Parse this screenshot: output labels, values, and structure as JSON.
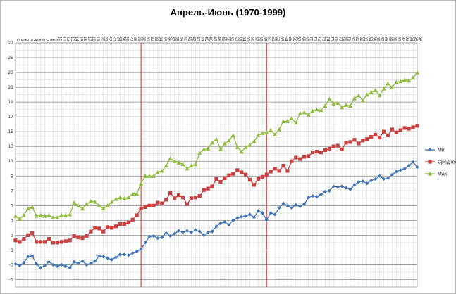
{
  "chart_data": {
    "type": "line",
    "title": "Апрель-Июнь (1970-1999)",
    "xlabel": "",
    "ylabel": "",
    "x_categories": [
      "0",
      "1",
      "2",
      "3",
      "4",
      "5",
      "6",
      "7",
      "8",
      "9",
      "10",
      "11",
      "12",
      "13",
      "14",
      "15",
      "16",
      "17",
      "18",
      "19",
      "20",
      "21",
      "22",
      "23",
      "24",
      "25",
      "26",
      "27",
      "28",
      "29",
      "30",
      "31",
      "32",
      "33",
      "34",
      "35",
      "36",
      "37",
      "38",
      "39",
      "40",
      "41",
      "42",
      "43",
      "44",
      "45",
      "46",
      "47",
      "48",
      "49",
      "50",
      "51",
      "52",
      "53",
      "54",
      "55",
      "56",
      "57",
      "58",
      "59",
      "60",
      "61",
      "62",
      "63",
      "64",
      "65",
      "66",
      "67",
      "68",
      "69",
      "70",
      "71",
      "72",
      "73",
      "74",
      "75",
      "76",
      "77",
      "78",
      "79",
      "80",
      "81",
      "82",
      "83",
      "84",
      "85",
      "86",
      "87",
      "88",
      "89",
      "90",
      "91",
      "92",
      "93",
      "94",
      "95",
      "96"
    ],
    "y_ticks": [
      -5,
      -3,
      -1,
      1,
      3,
      5,
      7,
      9,
      11,
      13,
      15,
      17,
      19,
      21,
      23,
      25,
      27
    ],
    "ylim": [
      -6,
      27
    ],
    "grid": true,
    "vertical_markers": [
      30,
      60
    ],
    "legend_position": "right",
    "series": [
      {
        "name": "Min",
        "color": "#3f73b8",
        "marker": "diamond",
        "values": [
          -2.9,
          -3.1,
          -2.7,
          -1.9,
          -1.8,
          -2.9,
          -3.4,
          -3.1,
          -2.6,
          -3.0,
          -3.2,
          -3.0,
          -3.2,
          -3.4,
          -2.6,
          -2.8,
          -2.5,
          -3.0,
          -2.8,
          -2.5,
          -1.8,
          -1.9,
          -2.1,
          -2.3,
          -2.0,
          -1.6,
          -1.6,
          -1.7,
          -1.4,
          -1.2,
          -0.9,
          0.0,
          0.8,
          0.9,
          0.6,
          0.7,
          1.3,
          0.9,
          1.2,
          1.6,
          1.4,
          1.6,
          1.4,
          1.7,
          1.5,
          1.0,
          1.4,
          1.5,
          2.2,
          2.6,
          2.8,
          2.4,
          3.0,
          3.3,
          3.5,
          3.6,
          3.8,
          3.4,
          4.3,
          4.0,
          3.1,
          4.0,
          3.8,
          4.7,
          5.3,
          5.0,
          4.7,
          5.1,
          4.9,
          5.2,
          6.1,
          6.3,
          6.2,
          6.5,
          6.9,
          7.0,
          7.6,
          7.5,
          7.6,
          7.4,
          7.2,
          7.8,
          8.2,
          8.3,
          8.0,
          8.4,
          8.6,
          9.0,
          8.6,
          8.7,
          9.2,
          9.6,
          9.8,
          10.0,
          10.4,
          10.9,
          10.2
        ]
      },
      {
        "name": "Среднее",
        "color": "#c94040",
        "marker": "square",
        "values": [
          0.3,
          0.1,
          0.5,
          1.0,
          1.3,
          0.1,
          0.1,
          0.1,
          0.5,
          0.0,
          0.0,
          0.1,
          0.2,
          0.3,
          0.9,
          0.7,
          0.6,
          0.9,
          1.5,
          2.0,
          1.9,
          1.5,
          2.1,
          2.0,
          2.2,
          2.5,
          2.5,
          2.7,
          3.1,
          3.7,
          4.6,
          4.8,
          5.0,
          5.0,
          5.4,
          5.3,
          5.8,
          6.7,
          6.0,
          6.4,
          6.1,
          5.2,
          6.0,
          6.1,
          6.3,
          7.1,
          7.3,
          7.6,
          8.6,
          8.2,
          8.7,
          9.1,
          9.3,
          9.8,
          9.5,
          9.2,
          8.5,
          7.8,
          8.6,
          8.9,
          9.2,
          9.6,
          10.0,
          9.7,
          10.4,
          9.7,
          11.0,
          11.5,
          11.3,
          11.6,
          11.7,
          12.2,
          12.3,
          12.2,
          12.5,
          12.7,
          13.0,
          13.1,
          12.6,
          13.5,
          13.6,
          13.9,
          13.4,
          13.8,
          14.0,
          14.3,
          14.6,
          14.2,
          15.0,
          14.5,
          15.3,
          14.9,
          15.2,
          15.5,
          15.4,
          15.6,
          15.8
        ]
      },
      {
        "name": "Max",
        "color": "#8fbc3f",
        "marker": "triangle",
        "values": [
          3.6,
          3.2,
          3.7,
          4.6,
          4.8,
          3.6,
          3.7,
          3.6,
          3.7,
          3.4,
          3.4,
          3.7,
          3.7,
          3.8,
          5.4,
          5.0,
          4.6,
          5.2,
          5.6,
          5.5,
          5.0,
          4.6,
          5.0,
          5.5,
          5.9,
          6.1,
          6.0,
          6.1,
          6.6,
          6.6,
          8.0,
          9.0,
          9.0,
          9.0,
          9.5,
          9.7,
          10.4,
          11.4,
          11.0,
          10.8,
          10.6,
          10.0,
          10.4,
          10.6,
          12.1,
          12.6,
          12.7,
          13.5,
          14.0,
          12.6,
          13.4,
          13.8,
          14.5,
          12.9,
          12.3,
          12.9,
          13.2,
          13.7,
          14.5,
          14.8,
          14.9,
          15.2,
          14.6,
          15.3,
          16.4,
          16.4,
          16.8,
          16.2,
          17.5,
          17.6,
          17.3,
          17.8,
          18.0,
          17.9,
          18.5,
          19.4,
          18.8,
          18.9,
          18.3,
          18.6,
          18.5,
          19.5,
          19.9,
          19.2,
          20.0,
          20.3,
          20.6,
          19.9,
          20.8,
          21.5,
          21.0,
          21.7,
          21.8,
          22.0,
          21.9,
          22.3,
          23.0
        ]
      }
    ]
  }
}
